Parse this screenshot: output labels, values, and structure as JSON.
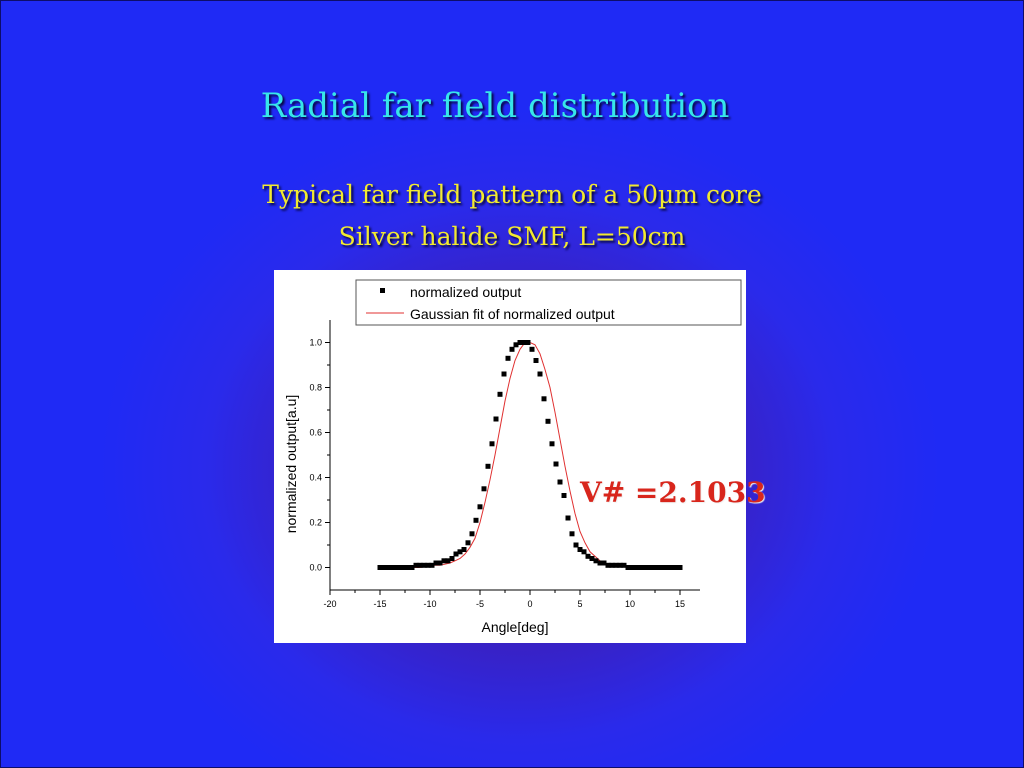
{
  "slide": {
    "title": "Radial far field distribution",
    "subtitle_line1": "Typical far field pattern of a 50µm core",
    "subtitle_line2": "Silver halide SMF,  L=50cm",
    "annotation": "V# =2.1033"
  },
  "colors": {
    "title": "#37e6ea",
    "subtitle": "#f2ea2f",
    "annotation": "#d8261c",
    "markers": "#000000",
    "fit_line": "#e03030"
  },
  "chart_data": {
    "type": "scatter",
    "xlabel": "Angle[deg]",
    "ylabel": "normalized output[a.u]",
    "xlim": [
      -20,
      17
    ],
    "ylim": [
      -0.1,
      1.1
    ],
    "xticks": [
      -20,
      -15,
      -10,
      -5,
      0,
      5,
      10,
      15
    ],
    "xtick_labels": [
      "-20",
      "-15",
      "-10",
      "-5",
      "0",
      "5",
      "10",
      "15"
    ],
    "yticks": [
      0.0,
      0.2,
      0.4,
      0.6,
      0.8,
      1.0
    ],
    "ytick_labels": [
      "0.0",
      "0.2",
      "0.4",
      "0.6",
      "0.8",
      "1.0"
    ],
    "grid": false,
    "legend_position": "top",
    "series": [
      {
        "name": "normalized output",
        "kind": "markers",
        "x": [
          -15,
          -14.6,
          -14.2,
          -13.8,
          -13.4,
          -13,
          -12.6,
          -12.2,
          -11.8,
          -11.4,
          -11,
          -10.6,
          -10.2,
          -9.8,
          -9.4,
          -9,
          -8.6,
          -8.2,
          -7.8,
          -7.4,
          -7,
          -6.6,
          -6.2,
          -5.8,
          -5.4,
          -5,
          -4.6,
          -4.2,
          -3.8,
          -3.4,
          -3,
          -2.6,
          -2.2,
          -1.8,
          -1.4,
          -1,
          -0.6,
          -0.2,
          0.2,
          0.6,
          1,
          1.4,
          1.8,
          2.2,
          2.6,
          3,
          3.4,
          3.8,
          4.2,
          4.6,
          5,
          5.4,
          5.8,
          6.2,
          6.6,
          7,
          7.4,
          7.8,
          8.2,
          8.6,
          9,
          9.4,
          9.8,
          10.2,
          10.6,
          11,
          11.4,
          11.8,
          12.2,
          12.6,
          13,
          13.4,
          13.8,
          14.2,
          14.6,
          15
        ],
        "y": [
          0.0,
          0.0,
          0.0,
          0.0,
          0.0,
          0.0,
          0.0,
          0.0,
          0.0,
          0.01,
          0.01,
          0.01,
          0.01,
          0.01,
          0.02,
          0.02,
          0.03,
          0.03,
          0.04,
          0.06,
          0.07,
          0.08,
          0.11,
          0.15,
          0.21,
          0.27,
          0.35,
          0.45,
          0.55,
          0.66,
          0.77,
          0.86,
          0.93,
          0.97,
          0.99,
          1.0,
          1.0,
          1.0,
          0.97,
          0.92,
          0.86,
          0.75,
          0.65,
          0.55,
          0.46,
          0.38,
          0.32,
          0.22,
          0.15,
          0.1,
          0.08,
          0.07,
          0.05,
          0.04,
          0.03,
          0.02,
          0.02,
          0.01,
          0.01,
          0.01,
          0.01,
          0.01,
          0.0,
          0.0,
          0.0,
          0.0,
          0.0,
          0.0,
          0.0,
          0.0,
          0.0,
          0.0,
          0.0,
          0.0,
          0.0,
          0.0
        ]
      },
      {
        "name": "Gaussian fit of normalized output",
        "kind": "line",
        "x": [
          -15,
          -14,
          -13,
          -12,
          -11,
          -10,
          -9,
          -8,
          -7.5,
          -7,
          -6.5,
          -6,
          -5.5,
          -5,
          -4.5,
          -4,
          -3.5,
          -3,
          -2.5,
          -2,
          -1.5,
          -1,
          -0.5,
          0,
          0.5,
          1,
          1.5,
          2,
          2.5,
          3,
          3.5,
          4,
          4.5,
          5,
          5.5,
          6,
          6.5,
          7,
          7.5,
          8,
          9,
          10,
          11,
          12,
          13,
          14,
          15
        ],
        "y": [
          0.0,
          0.0,
          0.0,
          0.0,
          0.0,
          0.01,
          0.01,
          0.02,
          0.03,
          0.04,
          0.06,
          0.09,
          0.13,
          0.2,
          0.29,
          0.39,
          0.5,
          0.62,
          0.74,
          0.84,
          0.92,
          0.97,
          1.0,
          1.0,
          0.99,
          0.95,
          0.88,
          0.8,
          0.69,
          0.57,
          0.45,
          0.34,
          0.24,
          0.16,
          0.11,
          0.07,
          0.05,
          0.03,
          0.02,
          0.01,
          0.01,
          0.0,
          0.0,
          0.0,
          0.0,
          0.0,
          0.0
        ]
      }
    ]
  }
}
